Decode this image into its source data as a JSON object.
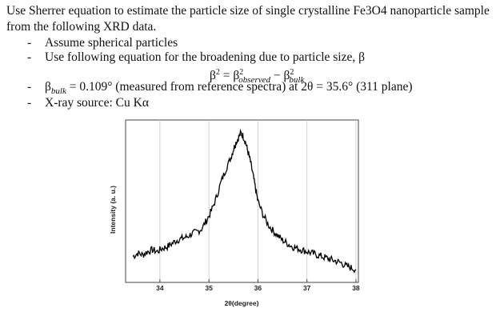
{
  "intro": "Use Sherrer equation to estimate the particle size of single crystalline Fe3O4 nanoparticle sample from the following XRD data.",
  "bullets": [
    {
      "dash": "-",
      "text": "Assume spherical particles"
    },
    {
      "dash": "-",
      "text": "Use following equation for the broadening due to particle size, β"
    }
  ],
  "equation": {
    "lhs": "β",
    "lhs_sup": "2",
    "eq": "=",
    "term1": "β",
    "term1_sup": "2",
    "term1_sub": "observed",
    "minus": "−",
    "term2": "β",
    "term2_sup": "2",
    "term2_sub": "bulk"
  },
  "bullets2": [
    {
      "dash": "-",
      "sym": "β",
      "sym_sub": "bulk",
      "text": " = 0.109° (measured from reference spectra) at 2θ = 35.6°  (311 plane)"
    },
    {
      "dash": "-",
      "text": "X-ray source: Cu Kα"
    }
  ],
  "chart_data": {
    "type": "line",
    "xlabel": "2θ(degree)",
    "ylabel": "Intensity (a. u.)",
    "xlim": [
      33.3,
      38.05
    ],
    "ylim": [
      0,
      1
    ],
    "x_ticks": [
      34,
      35,
      36,
      37,
      38
    ],
    "x_tick_labels": [
      "34",
      "35",
      "36",
      "37",
      "38"
    ],
    "grid": "vertical",
    "series": [
      {
        "x": [
          33.45,
          33.55,
          33.65,
          33.75,
          33.85,
          33.95,
          34.05,
          34.15,
          34.25,
          34.35,
          34.45,
          34.55,
          34.65,
          34.75,
          34.85,
          34.95,
          35.05,
          35.15,
          35.25,
          35.35,
          35.45,
          35.5,
          35.55,
          35.6,
          35.65,
          35.7,
          35.75,
          35.8,
          35.85,
          35.9,
          35.95,
          36.0,
          36.1,
          36.2,
          36.3,
          36.4,
          36.5,
          36.6,
          36.7,
          36.8,
          36.9,
          37.0,
          37.1,
          37.2,
          37.3,
          37.4,
          37.5,
          37.6,
          37.7,
          37.8,
          37.9,
          38.0
        ],
        "y": [
          0.16,
          0.18,
          0.17,
          0.19,
          0.2,
          0.19,
          0.21,
          0.22,
          0.24,
          0.26,
          0.27,
          0.28,
          0.3,
          0.31,
          0.33,
          0.38,
          0.44,
          0.52,
          0.62,
          0.7,
          0.77,
          0.82,
          0.86,
          0.89,
          0.92,
          0.9,
          0.86,
          0.8,
          0.74,
          0.66,
          0.58,
          0.5,
          0.42,
          0.36,
          0.32,
          0.29,
          0.26,
          0.24,
          0.22,
          0.21,
          0.2,
          0.19,
          0.18,
          0.17,
          0.16,
          0.15,
          0.14,
          0.13,
          0.12,
          0.1,
          0.09,
          0.08
        ]
      }
    ]
  },
  "colors": {
    "text": "#111111",
    "line": "#000000",
    "grid": "#c8c8c8"
  }
}
